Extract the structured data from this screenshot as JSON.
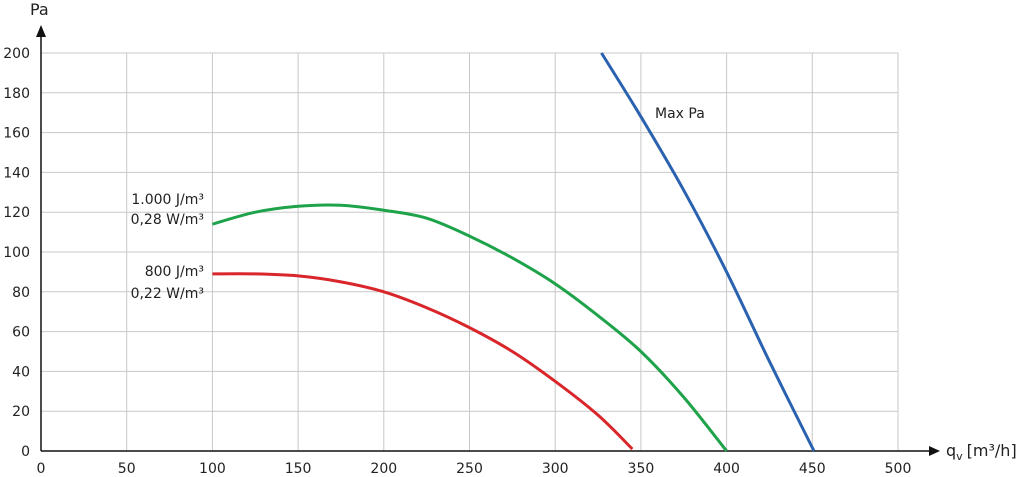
{
  "chart_data": {
    "type": "line",
    "y_axis_label": "Pa",
    "x_axis_label": "q",
    "x_axis_label_sub": "v",
    "x_axis_label_unit": "[m³/h]",
    "xlim": [
      0,
      500
    ],
    "ylim": [
      0,
      200
    ],
    "x_ticks": [
      0,
      50,
      100,
      150,
      200,
      250,
      300,
      350,
      400,
      450,
      500
    ],
    "y_ticks": [
      0,
      20,
      40,
      60,
      80,
      100,
      120,
      140,
      160,
      180,
      200
    ],
    "grid": true,
    "series": [
      {
        "color": "#1fa34a",
        "annotation": [
          "1.000 J/m³",
          "0,28 W/m³"
        ],
        "points": [
          [
            100,
            114
          ],
          [
            125,
            120
          ],
          [
            150,
            123
          ],
          [
            175,
            123.5
          ],
          [
            200,
            121
          ],
          [
            225,
            117
          ],
          [
            250,
            108
          ],
          [
            275,
            97
          ],
          [
            300,
            84
          ],
          [
            325,
            68
          ],
          [
            350,
            50
          ],
          [
            375,
            27
          ],
          [
            400,
            0
          ]
        ]
      },
      {
        "color": "#d9262b",
        "annotation": [
          "800 J/m³",
          "0,22 W/m³"
        ],
        "points": [
          [
            100,
            89
          ],
          [
            125,
            89
          ],
          [
            150,
            88
          ],
          [
            175,
            85
          ],
          [
            200,
            80
          ],
          [
            225,
            72
          ],
          [
            250,
            62
          ],
          [
            275,
            50
          ],
          [
            300,
            35
          ],
          [
            325,
            18
          ],
          [
            345,
            1
          ]
        ]
      },
      {
        "name": "Max Pa",
        "color": "#2a62b0",
        "points": [
          [
            327,
            200
          ],
          [
            350,
            168
          ],
          [
            375,
            131
          ],
          [
            400,
            90
          ],
          [
            425,
            45
          ],
          [
            451,
            0
          ]
        ]
      }
    ]
  }
}
